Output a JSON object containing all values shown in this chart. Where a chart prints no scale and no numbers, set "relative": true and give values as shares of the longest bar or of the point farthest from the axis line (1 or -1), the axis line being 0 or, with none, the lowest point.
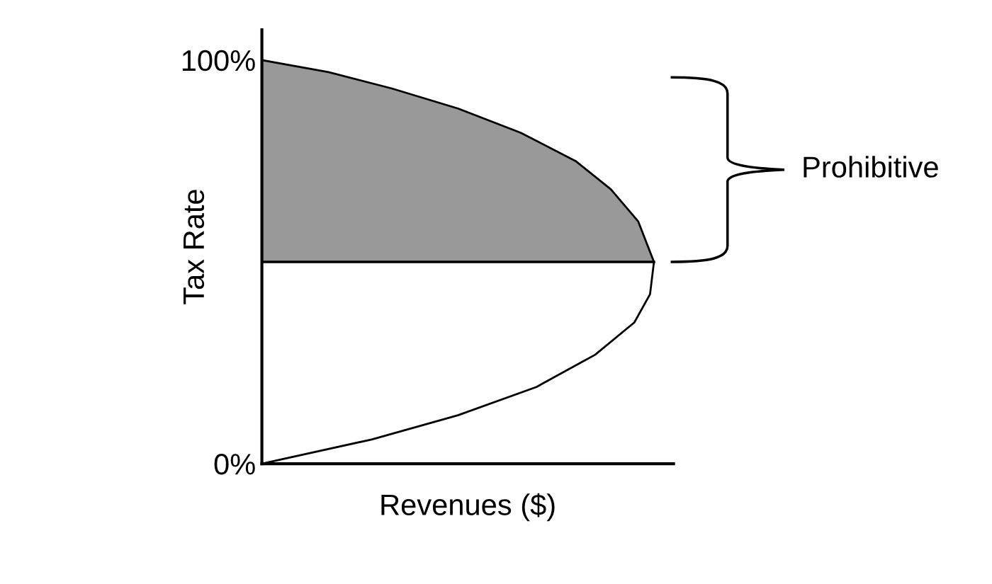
{
  "chart_data": {
    "type": "line",
    "xlabel": "Revenues ($)",
    "ylabel": "Tax Rate",
    "orientation": "horizontal",
    "relative": true,
    "series": [
      {
        "type": "area",
        "color": "#999999",
        "x": [
          100,
          97,
          93,
          88,
          82,
          75,
          68,
          60,
          50
        ],
        "values": [
          0,
          0.17,
          0.33,
          0.5,
          0.66,
          0.8,
          0.89,
          0.96,
          1.0
        ]
      },
      {
        "color": "#000000",
        "x": [
          100,
          97,
          93,
          88,
          82,
          75,
          68,
          60,
          50,
          42,
          35,
          27,
          19,
          12,
          6,
          0
        ],
        "values": [
          0,
          0.17,
          0.33,
          0.5,
          0.66,
          0.8,
          0.89,
          0.96,
          1.0,
          0.99,
          0.95,
          0.85,
          0.7,
          0.5,
          0.28,
          0
        ]
      }
    ],
    "ylim": [
      0,
      107.5
    ],
    "yticks": [
      {
        "value": 0,
        "label": "0%"
      },
      {
        "value": 100,
        "label": "100%"
      }
    ],
    "tick_labels": "y",
    "ref_lines": [
      {
        "axis": "y",
        "value": 50,
        "color": "#000000"
      }
    ],
    "annotations": [
      "Prohibitive"
    ]
  }
}
